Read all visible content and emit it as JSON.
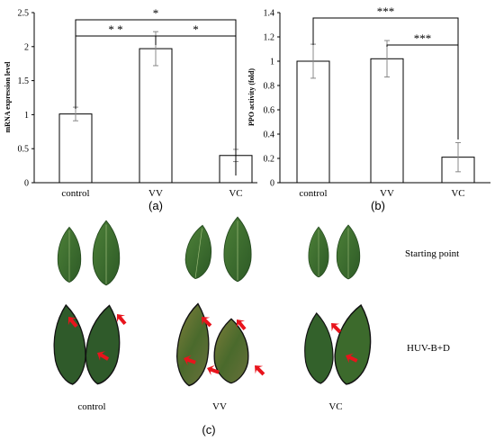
{
  "chart_data": [
    {
      "type": "bar",
      "panel_label": "(a)",
      "categories": [
        "control",
        "VV",
        "VC"
      ],
      "values": [
        1.01,
        1.97,
        0.4
      ],
      "errors": [
        0.1,
        0.25,
        0.09
      ],
      "title": "",
      "xlabel": "",
      "ylabel": "mRNA expression level",
      "ylim": [
        0,
        2.5
      ],
      "yticks": [
        "0",
        "0.5",
        "1",
        "1.5",
        "2",
        "2.5"
      ],
      "grid": false,
      "significance": [
        {
          "from": "VV",
          "to": "control",
          "label": "* *"
        },
        {
          "from": "VV",
          "to": "VC",
          "label": "*"
        },
        {
          "from": "control",
          "to": "VC",
          "label": "*"
        }
      ]
    },
    {
      "type": "bar",
      "panel_label": "(b)",
      "categories": [
        "control",
        "VV",
        "VC"
      ],
      "values": [
        1.0,
        1.02,
        0.21
      ],
      "errors": [
        0.14,
        0.15,
        0.12
      ],
      "title": "",
      "xlabel": "",
      "ylabel": "PPO activity (fold)",
      "ylim": [
        0,
        1.4
      ],
      "yticks": [
        "0",
        "0.2",
        "0.4",
        "0.6",
        "0.8",
        "1",
        "1.2",
        "1.4"
      ],
      "grid": false,
      "significance": [
        {
          "from": "VV",
          "to": "VC",
          "label": "***"
        },
        {
          "from": "control",
          "to": "VC",
          "label": "***"
        }
      ]
    }
  ],
  "photo_panel": {
    "panel_label": "(c)",
    "row_labels": [
      "Starting point",
      "HUV-B+D"
    ],
    "column_labels": [
      "control",
      "VV",
      "VC"
    ],
    "colors": {
      "leaf": "#3d6e2e",
      "leaf_dark": "#2b4f22",
      "leaf_damaged": "#6e7436",
      "arrow": "#e8141c"
    }
  }
}
